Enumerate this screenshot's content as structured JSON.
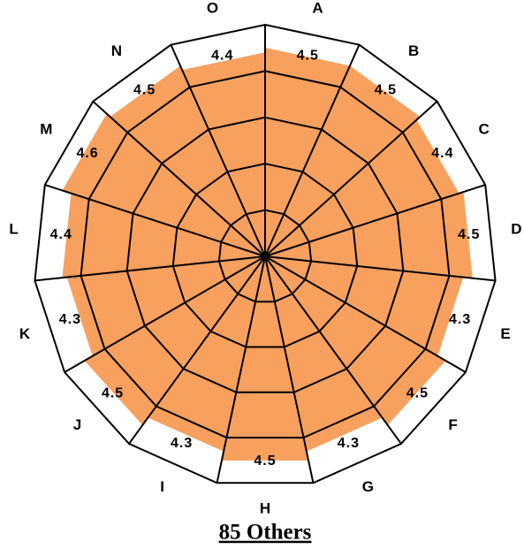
{
  "chart_data": {
    "type": "radar-sector",
    "title": "85 Others",
    "categories": [
      "A",
      "B",
      "C",
      "D",
      "E",
      "F",
      "G",
      "H",
      "I",
      "J",
      "K",
      "L",
      "M",
      "N",
      "O"
    ],
    "values": [
      4.5,
      4.5,
      4.4,
      4.5,
      4.3,
      4.5,
      4.3,
      4.5,
      4.3,
      4.5,
      4.3,
      4.4,
      4.6,
      4.5,
      4.4
    ],
    "color": "#f8a05e",
    "ylim": [
      0,
      5
    ],
    "yticks": [
      1,
      2,
      3,
      4,
      5
    ],
    "grid": true
  }
}
